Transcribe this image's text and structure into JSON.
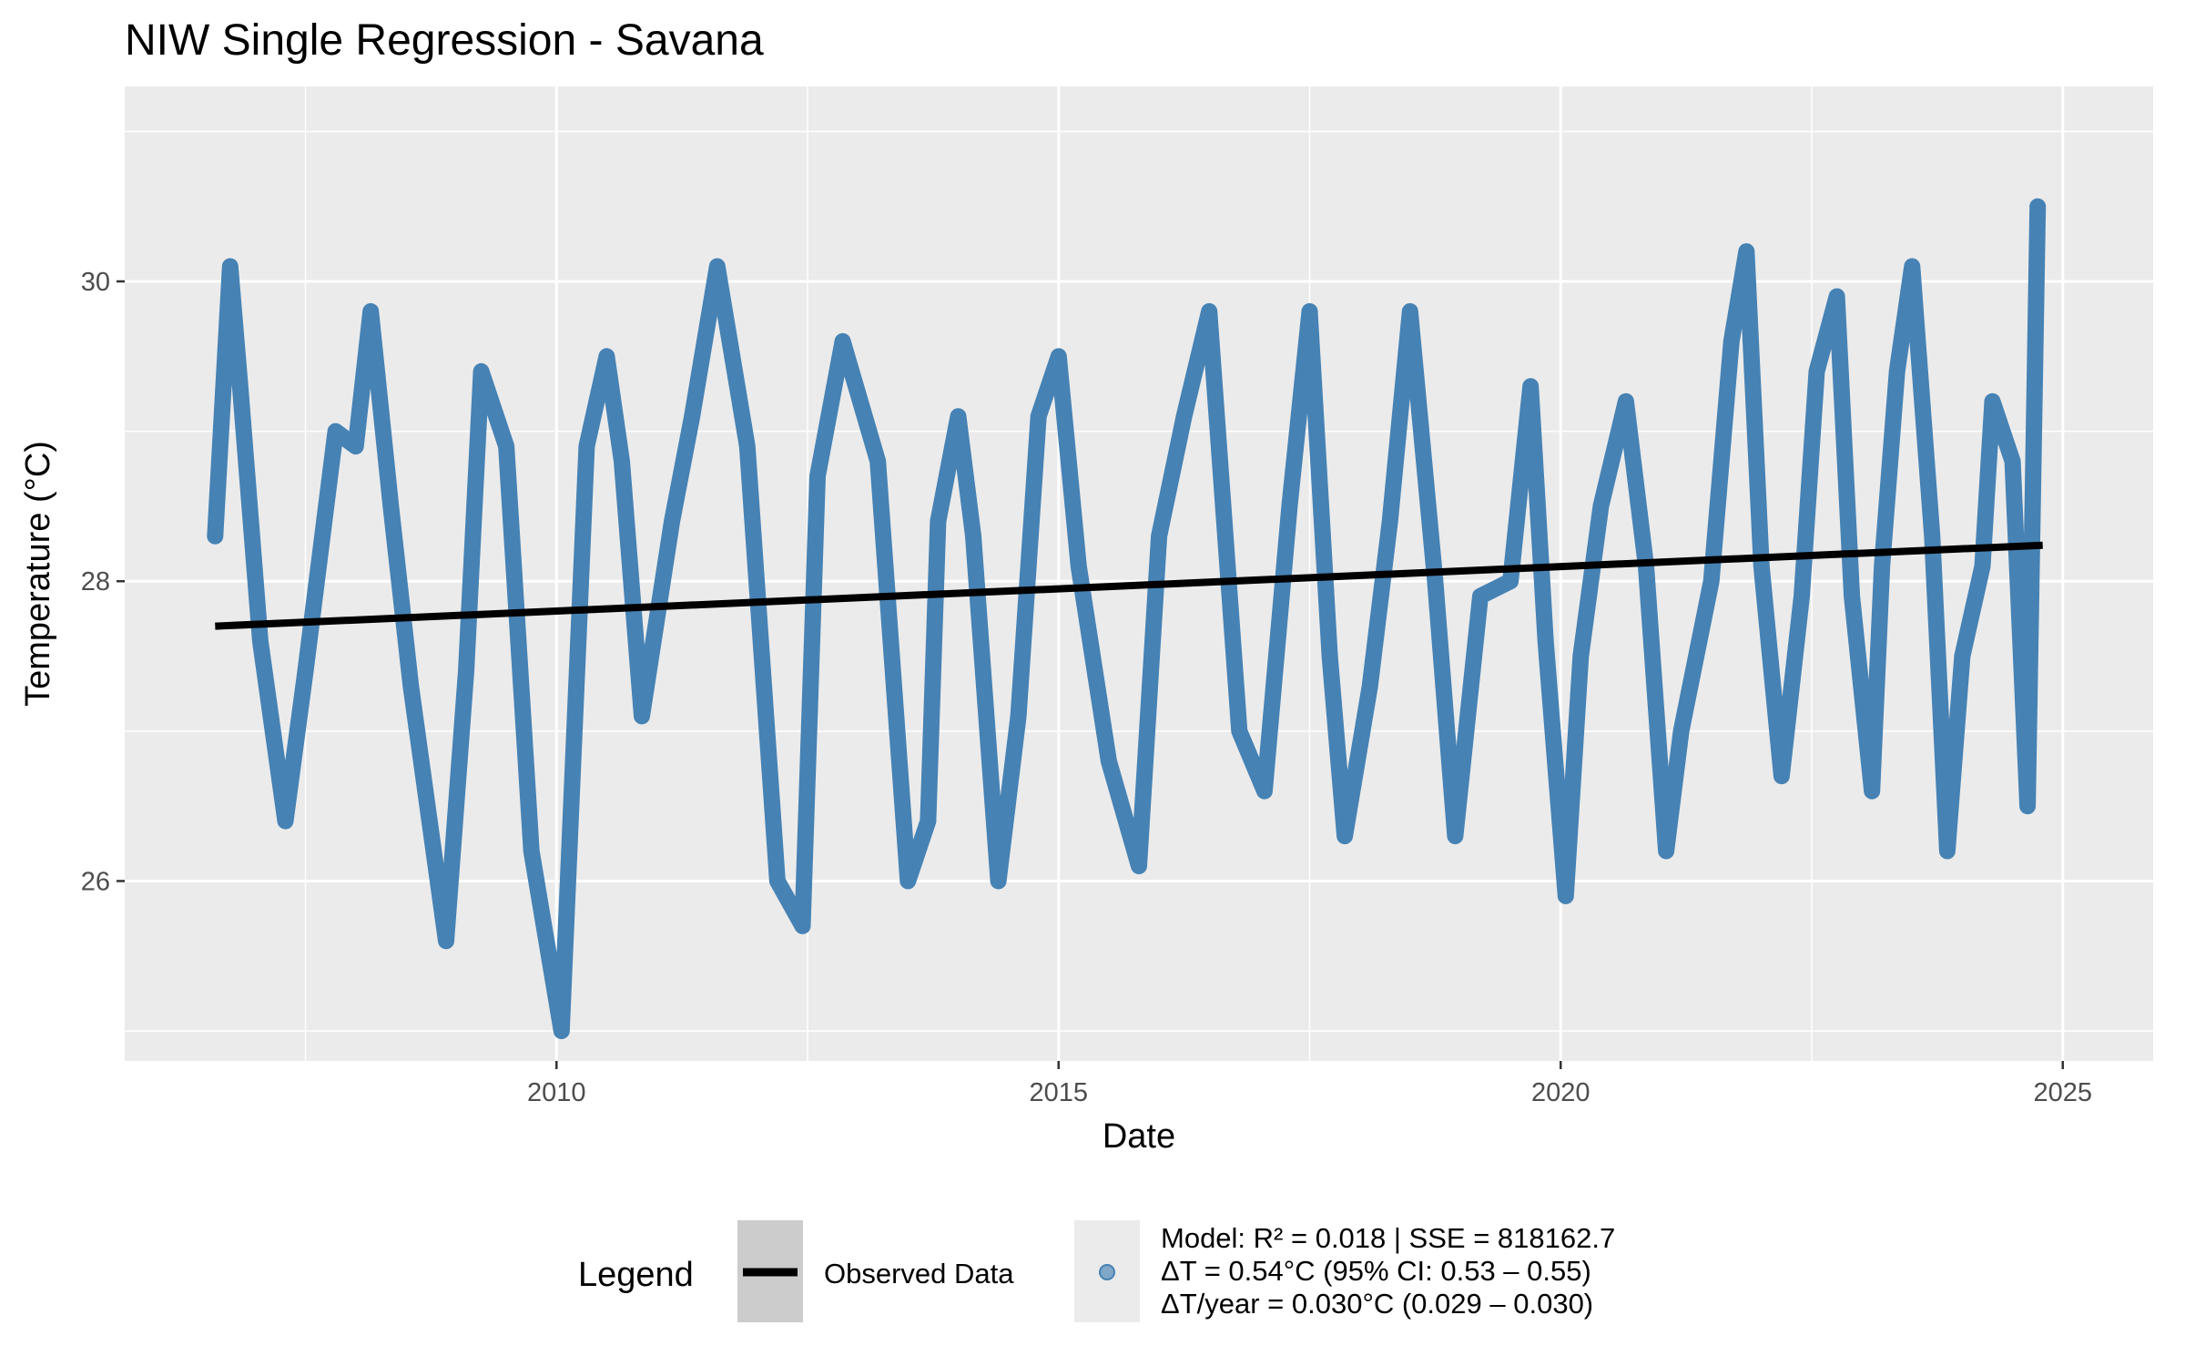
{
  "chart_data": {
    "type": "line",
    "title": "NIW Single Regression - Savana",
    "xlabel": "Date",
    "ylabel": "Temperature (°C)",
    "xlim": [
      2005.7,
      2025.9
    ],
    "ylim": [
      24.8,
      31.3
    ],
    "x_ticks": [
      2010,
      2015,
      2020,
      2025
    ],
    "x_tick_labels": [
      "2010",
      "2015",
      "2020",
      "2025"
    ],
    "y_ticks": [
      26,
      28,
      30
    ],
    "y_tick_labels": [
      "26",
      "28",
      "30"
    ],
    "grid": true,
    "legend_position": "bottom",
    "legend": {
      "title": "Legend",
      "entries": [
        {
          "symbol": "line",
          "color": "#000000",
          "label": "Observed Data"
        },
        {
          "symbol": "point",
          "color": "#4682B4",
          "label": "Model: R² = 0.018 | SSE = 818162.7\nΔT = 0.54°C (95% CI: 0.53 – 0.55)\nΔT/year = 0.030°C (0.029 – 0.030)"
        }
      ]
    },
    "series": [
      {
        "type": "observed",
        "color": "#4682B4",
        "x": [
          2006.6,
          2006.75,
          2006.85,
          2007.05,
          2007.3,
          2007.5,
          2007.8,
          2008.0,
          2008.15,
          2008.35,
          2008.55,
          2008.9,
          2009.1,
          2009.25,
          2009.5,
          2009.75,
          2010.05,
          2010.3,
          2010.5,
          2010.65,
          2010.85,
          2011.15,
          2011.35,
          2011.6,
          2011.9,
          2012.2,
          2012.45,
          2012.6,
          2012.85,
          2013.2,
          2013.5,
          2013.7,
          2013.8,
          2014.0,
          2014.15,
          2014.4,
          2014.6,
          2014.8,
          2015.0,
          2015.2,
          2015.5,
          2015.8,
          2016.0,
          2016.25,
          2016.5,
          2016.8,
          2017.05,
          2017.3,
          2017.5,
          2017.7,
          2017.85,
          2018.1,
          2018.3,
          2018.5,
          2018.75,
          2018.95,
          2019.2,
          2019.5,
          2019.7,
          2019.85,
          2020.05,
          2020.2,
          2020.4,
          2020.65,
          2020.85,
          2021.05,
          2021.2,
          2021.5,
          2021.7,
          2021.85,
          2022.0,
          2022.2,
          2022.4,
          2022.55,
          2022.75,
          2022.9,
          2023.1,
          2023.2,
          2023.35,
          2023.5,
          2023.7,
          2023.85,
          2024.0,
          2024.2,
          2024.3,
          2024.5,
          2024.65,
          2024.75
        ],
        "y": [
          28.3,
          30.1,
          29.3,
          27.6,
          26.4,
          27.4,
          29.0,
          28.9,
          29.8,
          28.5,
          27.3,
          25.6,
          27.4,
          29.4,
          28.9,
          26.2,
          25.0,
          28.9,
          29.5,
          28.8,
          27.1,
          28.4,
          29.1,
          30.1,
          28.9,
          26.0,
          25.7,
          28.7,
          29.6,
          28.8,
          26.0,
          26.4,
          28.4,
          29.1,
          28.3,
          26.0,
          27.1,
          29.1,
          29.5,
          28.1,
          26.8,
          26.1,
          28.3,
          29.1,
          29.8,
          27.0,
          26.6,
          28.5,
          29.8,
          27.5,
          26.3,
          27.3,
          28.4,
          29.8,
          28.0,
          26.3,
          27.9,
          28.0,
          29.3,
          27.6,
          25.9,
          27.5,
          28.5,
          29.2,
          28.1,
          26.2,
          27.0,
          28.0,
          29.6,
          30.2,
          28.1,
          26.7,
          27.9,
          29.4,
          29.9,
          27.9,
          26.6,
          28.1,
          29.4,
          30.1,
          28.3,
          26.2,
          27.5,
          28.1,
          29.2,
          28.8,
          26.5,
          30.5
        ],
        "name": ""
      },
      {
        "type": "trend",
        "color": "#000000",
        "x": [
          2006.6,
          2024.8
        ],
        "y": [
          27.7,
          28.24
        ],
        "name": ""
      }
    ]
  }
}
